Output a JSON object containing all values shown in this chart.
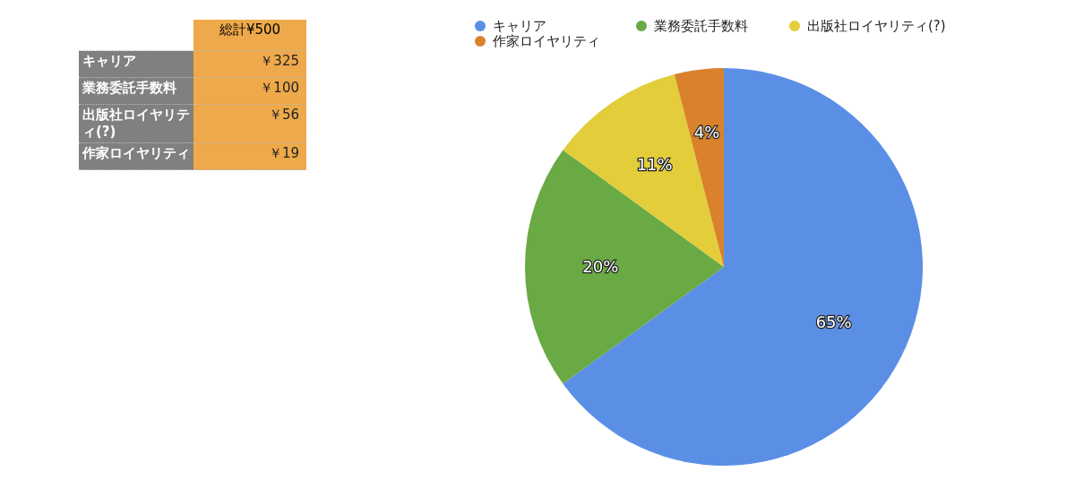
{
  "chart_data": {
    "type": "pie",
    "categories": [
      "キャリア",
      "業務委託手数料",
      "出版社ロイヤリティ(?)",
      "作家ロイヤリティ"
    ],
    "values": [
      65,
      20,
      11,
      4
    ],
    "colors": [
      "#5b8fe6",
      "#6aaa45",
      "#e3cd3a",
      "#d9822b"
    ],
    "value_labels": [
      "65%",
      "20%",
      "11%",
      "4%"
    ],
    "annotations": [
      "総計¥500",
      "￥325",
      "￥100",
      "￥56",
      "￥19"
    ],
    "legend": "top"
  }
}
